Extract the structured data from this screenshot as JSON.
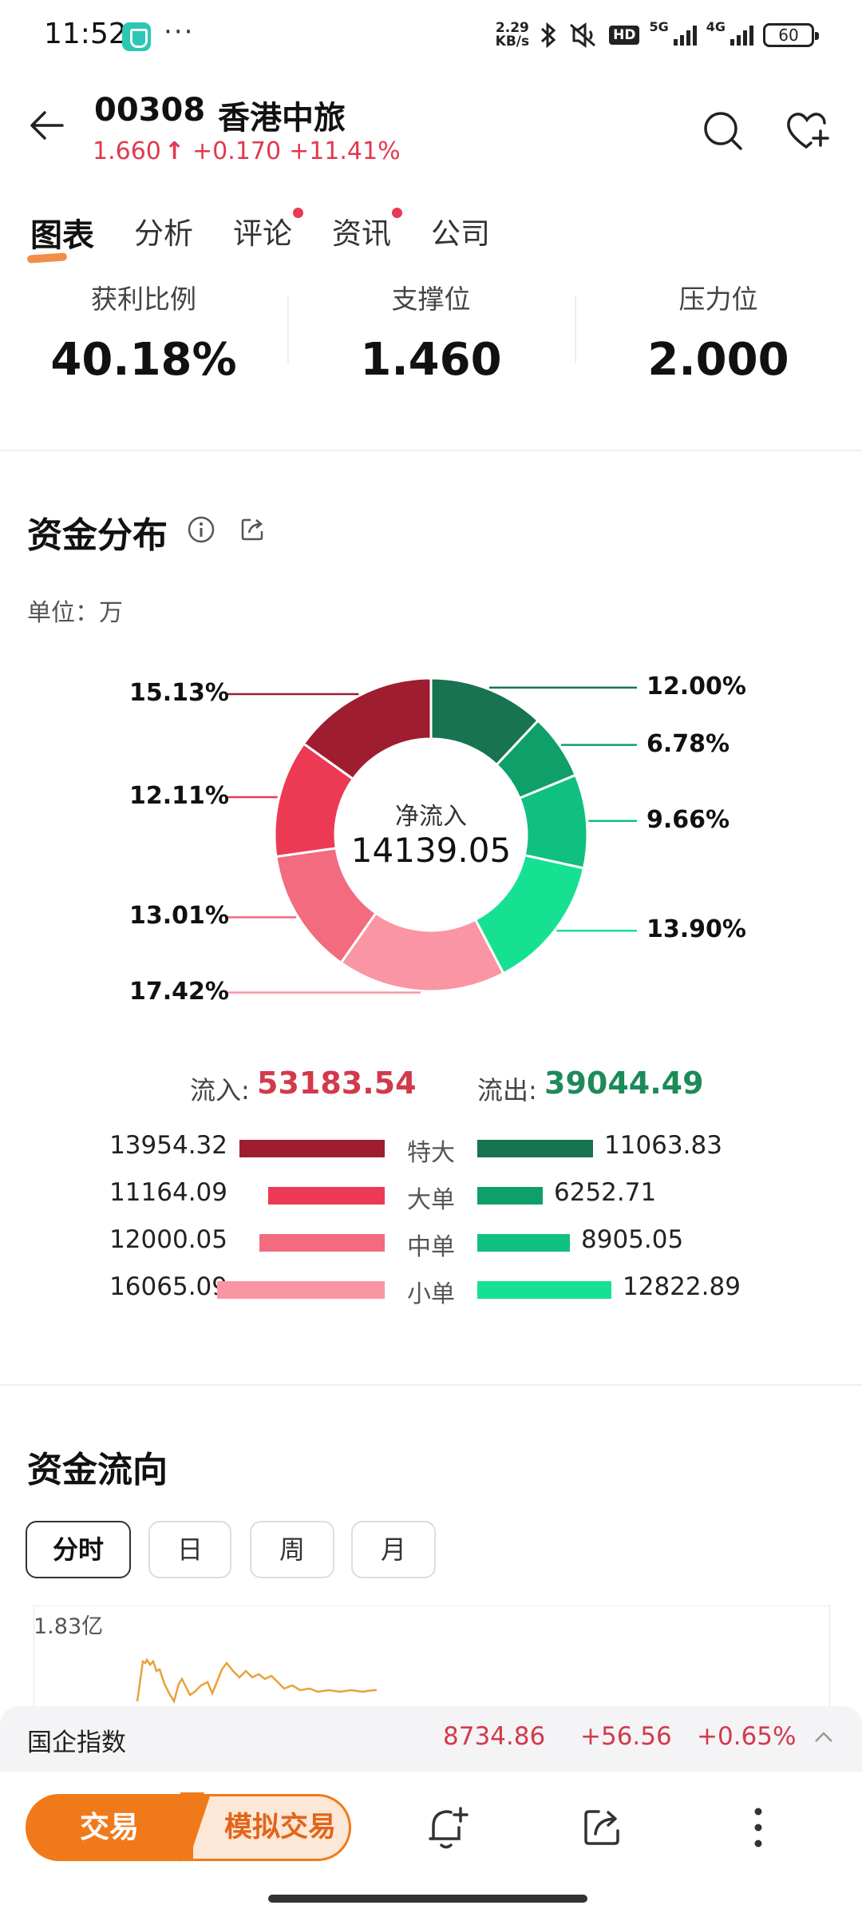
{
  "status_bar": {
    "time": "11:52",
    "dots": "···",
    "speed_value": "2.29",
    "speed_unit": "KB/s",
    "hd_badge": "HD",
    "net_5g": "5G",
    "net_4g": "4G",
    "battery": "60",
    "icons": [
      "bluetooth-icon",
      "mute-icon",
      "signal-icon",
      "battery-icon"
    ]
  },
  "header": {
    "code": "00308",
    "name": "香港中旅",
    "price": "1.660",
    "arrow": "↑",
    "change": "+0.170",
    "change_pct": "+11.41%",
    "accent_color": "#e0394f"
  },
  "tabs": [
    {
      "label": "图表",
      "active": true,
      "dot": false
    },
    {
      "label": "分析",
      "active": false,
      "dot": false
    },
    {
      "label": "评论",
      "active": false,
      "dot": true
    },
    {
      "label": "资讯",
      "active": false,
      "dot": true
    },
    {
      "label": "公司",
      "active": false,
      "dot": false
    }
  ],
  "stats": [
    {
      "label": "获利比例",
      "value": "40.18%"
    },
    {
      "label": "支撑位",
      "value": "1.460"
    },
    {
      "label": "压力位",
      "value": "2.000"
    }
  ],
  "fund_distribution": {
    "title": "资金分布",
    "unit_label": "单位：万",
    "center_title": "净流入",
    "center_value": "14139.05",
    "inflow_label": "流入:",
    "inflow_total": "53183.54",
    "outflow_label": "流出:",
    "outflow_total": "39044.49",
    "rows": [
      {
        "category": "特大",
        "inflow": "13954.32",
        "outflow": "11063.83",
        "in_color": "#9e1e30",
        "out_color": "#177350"
      },
      {
        "category": "大单",
        "inflow": "11164.09",
        "outflow": "6252.71",
        "in_color": "#ec3a55",
        "out_color": "#0fa06a"
      },
      {
        "category": "中单",
        "inflow": "12000.05",
        "outflow": "8905.05",
        "in_color": "#f26b7f",
        "out_color": "#10c081"
      },
      {
        "category": "小单",
        "inflow": "16065.09",
        "outflow": "12822.89",
        "in_color": "#fa95a4",
        "out_color": "#16e193"
      }
    ]
  },
  "chart_data": {
    "type": "pie",
    "donut": true,
    "slices": [
      {
        "label": "特大流出",
        "value": 12.0,
        "display": "12.00%",
        "color": "#177350"
      },
      {
        "label": "大单流出",
        "value": 6.78,
        "display": "6.78%",
        "color": "#0fa06a"
      },
      {
        "label": "中单流出",
        "value": 9.66,
        "display": "9.66%",
        "color": "#10c081"
      },
      {
        "label": "小单流出",
        "value": 13.9,
        "display": "13.90%",
        "color": "#16e193"
      },
      {
        "label": "小单流入",
        "value": 17.42,
        "display": "17.42%",
        "color": "#fa95a4"
      },
      {
        "label": "中单流入",
        "value": 13.01,
        "display": "13.01%",
        "color": "#f26b7f"
      },
      {
        "label": "大单流入",
        "value": 12.11,
        "display": "12.11%",
        "color": "#ec3a55"
      },
      {
        "label": "特大流入",
        "value": 15.13,
        "display": "15.13%",
        "color": "#9e1e30"
      }
    ],
    "start_angle_deg": 0,
    "direction": "clockwise"
  },
  "fund_flow": {
    "title": "资金流向",
    "periods": [
      {
        "label": "分时",
        "active": true
      },
      {
        "label": "日",
        "active": false
      },
      {
        "label": "周",
        "active": false
      },
      {
        "label": "月",
        "active": false
      }
    ],
    "y_max_label": "1.83亿",
    "line_color": "#e8a23a"
  },
  "index_bar": {
    "name": "国企指数",
    "value": "8734.86",
    "change": "+56.56",
    "change_pct": "+0.65%"
  },
  "bottom_bar": {
    "trade_label": "交易",
    "sim_trade_label": "模拟交易"
  }
}
